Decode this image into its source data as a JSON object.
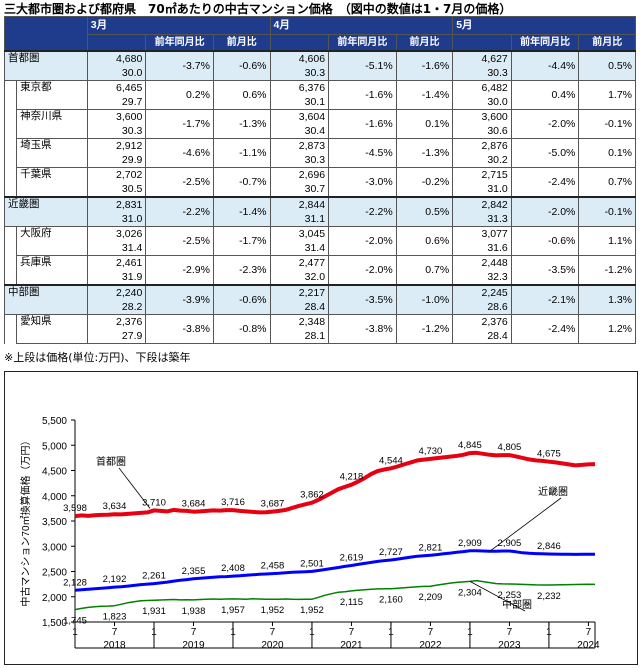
{
  "title": "三大都市圏および都府県　70㎡あたりの中古マンション価格　（図中の数値は1・7月の価格）",
  "table": {
    "months": [
      "3月",
      "4月",
      "5月"
    ],
    "subheaders": [
      "前年同月比",
      "前月比"
    ],
    "rows": [
      {
        "name": "首都圏",
        "level": "region",
        "cells": [
          [
            "4,680",
            "30.0",
            "-3.7%",
            "-0.6%"
          ],
          [
            "4,606",
            "30.3",
            "-5.1%",
            "-1.6%"
          ],
          [
            "4,627",
            "30.3",
            "-4.4%",
            "0.5%"
          ]
        ]
      },
      {
        "name": "東京都",
        "level": "pref",
        "cells": [
          [
            "6,465",
            "29.7",
            "0.2%",
            "0.6%"
          ],
          [
            "6,376",
            "30.1",
            "-1.6%",
            "-1.4%"
          ],
          [
            "6,482",
            "30.0",
            "0.4%",
            "1.7%"
          ]
        ]
      },
      {
        "name": "神奈川県",
        "level": "pref",
        "cells": [
          [
            "3,600",
            "30.3",
            "-1.7%",
            "-1.3%"
          ],
          [
            "3,604",
            "30.4",
            "-1.6%",
            "0.1%"
          ],
          [
            "3,600",
            "30.6",
            "-2.0%",
            "-0.1%"
          ]
        ]
      },
      {
        "name": "埼玉県",
        "level": "pref",
        "cells": [
          [
            "2,912",
            "29.9",
            "-4.6%",
            "-1.1%"
          ],
          [
            "2,873",
            "30.3",
            "-4.5%",
            "-1.3%"
          ],
          [
            "2,876",
            "30.2",
            "-5.0%",
            "0.1%"
          ]
        ]
      },
      {
        "name": "千葉県",
        "level": "pref",
        "cells": [
          [
            "2,702",
            "30.5",
            "-2.5%",
            "-0.7%"
          ],
          [
            "2,696",
            "30.7",
            "-3.0%",
            "-0.2%"
          ],
          [
            "2,715",
            "31.0",
            "-2.4%",
            "0.7%"
          ]
        ]
      },
      {
        "name": "近畿圏",
        "level": "region",
        "cells": [
          [
            "2,831",
            "31.0",
            "-2.2%",
            "-1.4%"
          ],
          [
            "2,844",
            "31.1",
            "-2.2%",
            "0.5%"
          ],
          [
            "2,842",
            "31.3",
            "-2.0%",
            "-0.1%"
          ]
        ]
      },
      {
        "name": "大阪府",
        "level": "pref",
        "cells": [
          [
            "3,026",
            "31.4",
            "-2.5%",
            "-1.7%"
          ],
          [
            "3,045",
            "31.4",
            "-2.0%",
            "0.6%"
          ],
          [
            "3,077",
            "31.6",
            "-0.6%",
            "1.1%"
          ]
        ]
      },
      {
        "name": "兵庫県",
        "level": "pref",
        "cells": [
          [
            "2,461",
            "31.9",
            "-2.9%",
            "-2.3%"
          ],
          [
            "2,477",
            "32.0",
            "-2.0%",
            "0.7%"
          ],
          [
            "2,448",
            "32.3",
            "-3.5%",
            "-1.2%"
          ]
        ]
      },
      {
        "name": "中部圏",
        "level": "region",
        "cells": [
          [
            "2,240",
            "28.2",
            "-3.9%",
            "-0.6%"
          ],
          [
            "2,217",
            "28.4",
            "-3.5%",
            "-1.0%"
          ],
          [
            "2,245",
            "28.6",
            "-2.1%",
            "1.3%"
          ]
        ]
      },
      {
        "name": "愛知県",
        "level": "pref",
        "cells": [
          [
            "2,376",
            "27.9",
            "-3.8%",
            "-0.8%"
          ],
          [
            "2,348",
            "28.1",
            "-3.8%",
            "-1.2%"
          ],
          [
            "2,376",
            "28.4",
            "-2.4%",
            "1.2%"
          ]
        ]
      }
    ]
  },
  "note": "※上段は価格(単位:万円)、下段は築年",
  "chart_data": {
    "type": "line",
    "ylabel": "中古マンション70㎡換算価格（万円）",
    "ylim": [
      1500,
      5500
    ],
    "yticks": [
      "1,500",
      "2,000",
      "2,500",
      "3,000",
      "3,500",
      "4,000",
      "4,500",
      "5,000",
      "5,500"
    ],
    "x_tick_labels": [
      "1",
      "7",
      "1",
      "7",
      "1",
      "7",
      "1",
      "7",
      "1",
      "7",
      "1",
      "7",
      "1",
      "7"
    ],
    "years": [
      "2018",
      "2019",
      "2020",
      "2021",
      "2022",
      "2023",
      "2024"
    ],
    "series": [
      {
        "name": "首都圏",
        "color": "#e60012",
        "width": 4,
        "values": [
          3598,
          3610,
          3600,
          3615,
          3620,
          3625,
          3634,
          3630,
          3640,
          3650,
          3660,
          3670,
          3710,
          3700,
          3690,
          3720,
          3705,
          3700,
          3684,
          3690,
          3700,
          3710,
          3705,
          3715,
          3716,
          3700,
          3690,
          3680,
          3670,
          3675,
          3687,
          3700,
          3720,
          3760,
          3800,
          3830,
          3862,
          3920,
          3990,
          4060,
          4130,
          4175,
          4218,
          4280,
          4350,
          4430,
          4490,
          4520,
          4544,
          4580,
          4620,
          4660,
          4700,
          4715,
          4730,
          4745,
          4760,
          4775,
          4790,
          4810,
          4845,
          4850,
          4830,
          4810,
          4800,
          4805,
          4805,
          4780,
          4750,
          4720,
          4700,
          4690,
          4675,
          4660,
          4640,
          4620,
          4600,
          4610,
          4620,
          4627
        ],
        "labels": [
          [
            0,
            "3,598"
          ],
          [
            6,
            "3,634"
          ],
          [
            12,
            "3,710"
          ],
          [
            18,
            "3,684"
          ],
          [
            24,
            "3,716"
          ],
          [
            30,
            "3,687"
          ],
          [
            36,
            "3,862"
          ],
          [
            42,
            "4,218"
          ],
          [
            48,
            "4,544"
          ],
          [
            54,
            "4,730"
          ],
          [
            60,
            "4,845"
          ],
          [
            66,
            "4,805"
          ],
          [
            72,
            "4,675"
          ]
        ]
      },
      {
        "name": "近畿圏",
        "color": "#0000ff",
        "width": 3,
        "values": [
          2128,
          2140,
          2150,
          2160,
          2170,
          2180,
          2192,
          2200,
          2210,
          2225,
          2240,
          2250,
          2261,
          2275,
          2290,
          2310,
          2325,
          2340,
          2355,
          2365,
          2375,
          2385,
          2395,
          2400,
          2408,
          2415,
          2425,
          2435,
          2445,
          2450,
          2458,
          2465,
          2475,
          2485,
          2490,
          2495,
          2501,
          2520,
          2540,
          2560,
          2580,
          2600,
          2619,
          2640,
          2660,
          2680,
          2700,
          2715,
          2727,
          2745,
          2765,
          2785,
          2800,
          2810,
          2821,
          2835,
          2850,
          2865,
          2880,
          2895,
          2909,
          2910,
          2905,
          2900,
          2900,
          2905,
          2905,
          2890,
          2870,
          2860,
          2855,
          2850,
          2846,
          2845,
          2842,
          2840,
          2838,
          2840,
          2842,
          2842
        ],
        "labels": [
          [
            0,
            "2,128"
          ],
          [
            6,
            "2,192"
          ],
          [
            12,
            "2,261"
          ],
          [
            18,
            "2,355"
          ],
          [
            24,
            "2,408"
          ],
          [
            30,
            "2,458"
          ],
          [
            36,
            "2,501"
          ],
          [
            42,
            "2,619"
          ],
          [
            48,
            "2,727"
          ],
          [
            54,
            "2,821"
          ],
          [
            60,
            "2,909"
          ],
          [
            66,
            "2,905"
          ],
          [
            72,
            "2,846"
          ]
        ]
      },
      {
        "name": "中部圏",
        "color": "#008000",
        "width": 1.5,
        "values": [
          1745,
          1770,
          1790,
          1800,
          1810,
          1815,
          1823,
          1850,
          1880,
          1900,
          1920,
          1925,
          1931,
          1935,
          1940,
          1945,
          1938,
          1942,
          1938,
          1945,
          1950,
          1955,
          1950,
          1955,
          1957,
          1955,
          1950,
          1960,
          1955,
          1950,
          1952,
          1950,
          1955,
          1950,
          1948,
          1950,
          1952,
          1990,
          2030,
          2060,
          2090,
          2100,
          2115,
          2130,
          2140,
          2150,
          2155,
          2158,
          2160,
          2170,
          2180,
          2190,
          2200,
          2205,
          2209,
          2230,
          2250,
          2270,
          2285,
          2295,
          2304,
          2320,
          2300,
          2280,
          2260,
          2255,
          2253,
          2250,
          2245,
          2240,
          2235,
          2233,
          2232,
          2235,
          2238,
          2240,
          2242,
          2245,
          2248,
          2245
        ],
        "labels": [
          [
            0,
            "1,745"
          ],
          [
            6,
            "1,823"
          ],
          [
            12,
            "1,931"
          ],
          [
            18,
            "1,938"
          ],
          [
            24,
            "1,957"
          ],
          [
            30,
            "1,952"
          ],
          [
            36,
            "1,952"
          ],
          [
            42,
            "2,115"
          ],
          [
            48,
            "2,160"
          ],
          [
            54,
            "2,209"
          ],
          [
            60,
            "2,304"
          ],
          [
            66,
            "2,253"
          ],
          [
            72,
            "2,232"
          ]
        ]
      }
    ]
  }
}
